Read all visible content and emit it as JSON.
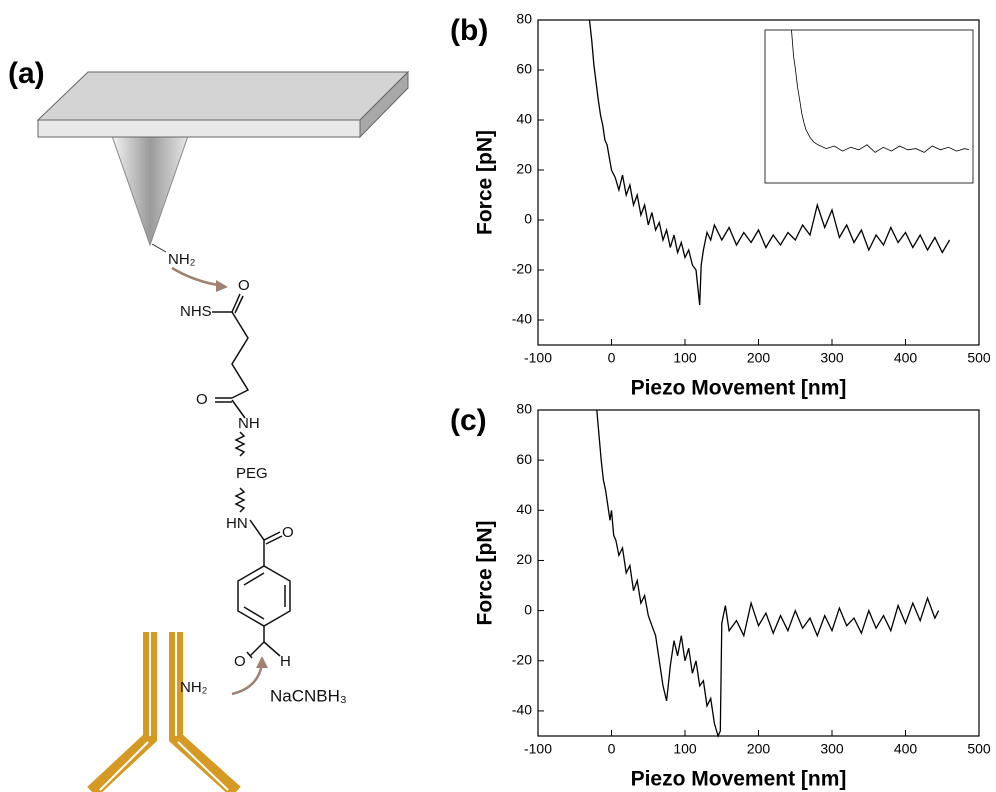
{
  "diagram": {
    "panel_label": "(a)",
    "tip_group": "NH₂",
    "nhs": "NHS",
    "o1": "O",
    "o2": "O",
    "nh": "NH",
    "peg": "PEG",
    "hn": "HN",
    "o3": "O",
    "o4": "O",
    "h": "H",
    "antibody_group": "NH₂",
    "reagent": "NaCNBH₃"
  },
  "chart_data": [
    {
      "type": "line",
      "panel_label": "(b)",
      "x_label": "Piezo Movement [nm]",
      "y_label": "Force [pN]",
      "color": "#000000",
      "xlim": [
        -100,
        500
      ],
      "ylim": [
        -50,
        80
      ],
      "xticks": [
        -100,
        0,
        100,
        200,
        300,
        400,
        500
      ],
      "yticks": [
        -40,
        -20,
        0,
        20,
        40,
        60,
        80
      ],
      "x": [
        -30,
        -27,
        -24,
        -21,
        -18,
        -15,
        -12,
        -9,
        -6,
        -3,
        0,
        5,
        10,
        15,
        20,
        25,
        30,
        35,
        40,
        45,
        50,
        55,
        60,
        65,
        70,
        75,
        80,
        85,
        90,
        95,
        100,
        105,
        110,
        115,
        120,
        122,
        125,
        130,
        135,
        140,
        150,
        160,
        170,
        180,
        190,
        200,
        210,
        220,
        230,
        240,
        250,
        260,
        270,
        280,
        290,
        300,
        310,
        320,
        330,
        340,
        350,
        360,
        370,
        380,
        390,
        400,
        410,
        420,
        430,
        440,
        450,
        460
      ],
      "values": [
        80,
        72,
        62,
        55,
        48,
        42,
        38,
        32,
        30,
        25,
        20,
        17,
        12,
        18,
        10,
        14,
        6,
        10,
        2,
        6,
        -2,
        3,
        -4,
        -1,
        -8,
        -4,
        -11,
        -6,
        -13,
        -9,
        -15,
        -12,
        -18,
        -20,
        -34,
        -18,
        -12,
        -5,
        -8,
        -2,
        -8,
        -3,
        -10,
        -5,
        -9,
        -4,
        -11,
        -6,
        -10,
        -5,
        -8,
        -2,
        -6,
        6,
        -3,
        4,
        -7,
        -2,
        -9,
        -4,
        -12,
        -6,
        -10,
        -3,
        -9,
        -5,
        -11,
        -6,
        -12,
        -7,
        -13,
        -8
      ]
    },
    {
      "type": "line",
      "color": "#000000",
      "xlim": [
        -40,
        470
      ],
      "ylim": [
        -20,
        100
      ],
      "x": [
        25,
        30,
        35,
        40,
        45,
        50,
        55,
        60,
        70,
        80,
        90,
        110,
        130,
        150,
        170,
        190,
        210,
        230,
        250,
        270,
        290,
        310,
        330,
        350,
        370,
        390,
        410,
        430,
        450,
        460
      ],
      "values": [
        100,
        80,
        68,
        55,
        45,
        35,
        28,
        22,
        16,
        12,
        10,
        7,
        9,
        5,
        8,
        6,
        10,
        4,
        8,
        5,
        9,
        6,
        7,
        4,
        9,
        6,
        8,
        5,
        7,
        6
      ]
    },
    {
      "type": "line",
      "panel_label": "(c)",
      "x_label": "Piezo Movement [nm]",
      "y_label": "Force [pN]",
      "color": "#000000",
      "xlim": [
        -100,
        500
      ],
      "ylim": [
        -50,
        80
      ],
      "xticks": [
        -100,
        0,
        100,
        200,
        300,
        400,
        500
      ],
      "yticks": [
        -40,
        -20,
        0,
        20,
        40,
        60,
        80
      ],
      "x": [
        -20,
        -17,
        -14,
        -11,
        -8,
        -5,
        -2,
        0,
        3,
        6,
        10,
        15,
        20,
        25,
        30,
        35,
        40,
        45,
        50,
        55,
        60,
        65,
        70,
        75,
        80,
        85,
        90,
        95,
        100,
        105,
        110,
        115,
        120,
        125,
        130,
        135,
        140,
        145,
        148,
        150,
        155,
        160,
        170,
        180,
        190,
        200,
        210,
        220,
        230,
        240,
        250,
        260,
        270,
        280,
        290,
        300,
        310,
        320,
        330,
        340,
        350,
        360,
        370,
        380,
        390,
        400,
        410,
        420,
        430,
        440,
        445
      ],
      "values": [
        80,
        70,
        60,
        52,
        48,
        42,
        36,
        40,
        30,
        28,
        22,
        25,
        15,
        18,
        8,
        12,
        3,
        6,
        -2,
        -6,
        -10,
        -20,
        -30,
        -36,
        -22,
        -12,
        -18,
        -10,
        -20,
        -15,
        -25,
        -20,
        -30,
        -28,
        -38,
        -35,
        -45,
        -50,
        -48,
        -5,
        2,
        -8,
        -4,
        -10,
        3,
        -6,
        -1,
        -9,
        -2,
        -8,
        0,
        -7,
        -3,
        -10,
        -2,
        -8,
        1,
        -6,
        -3,
        -9,
        0,
        -7,
        -2,
        -8,
        2,
        -5,
        3,
        -4,
        5,
        -3,
        0
      ]
    }
  ]
}
